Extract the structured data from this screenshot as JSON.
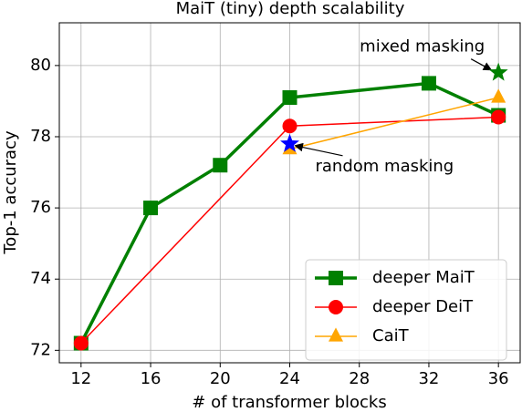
{
  "chart_data": {
    "type": "line",
    "title": "MaiT (tiny) depth scalability",
    "x_label": "# of transformer blocks",
    "y_label": "Top-1 accuracy",
    "xlim": [
      10.75,
      37.25
    ],
    "xticks": [
      12,
      16,
      20,
      24,
      28,
      32,
      36
    ],
    "ylim": [
      71.65,
      81.2
    ],
    "yticks": [
      72,
      74,
      76,
      78,
      80
    ],
    "grid": true,
    "legend": "lower right",
    "series": [
      {
        "name": "deeper MaiT",
        "color": "#008000",
        "marker": "square",
        "x": [
          12,
          16,
          20,
          24,
          32,
          36
        ],
        "values": [
          72.2,
          76.0,
          77.2,
          79.1,
          79.5,
          78.6
        ]
      },
      {
        "name": "deeper DeiT",
        "color": "#ff0000",
        "marker": "circle",
        "x": [
          12,
          24,
          36
        ],
        "values": [
          72.2,
          78.3,
          78.55
        ]
      },
      {
        "name": "CaiT",
        "color": "#ffa500",
        "marker": "triangle",
        "x": [
          24,
          36
        ],
        "values": [
          77.65,
          79.1
        ]
      }
    ],
    "annotations": [
      {
        "text": "mixed masking",
        "x": 36,
        "y": 79.8,
        "color": "#008000"
      },
      {
        "text": "random masking",
        "x": 24,
        "y": 77.8,
        "color": "#0000ff"
      }
    ]
  }
}
